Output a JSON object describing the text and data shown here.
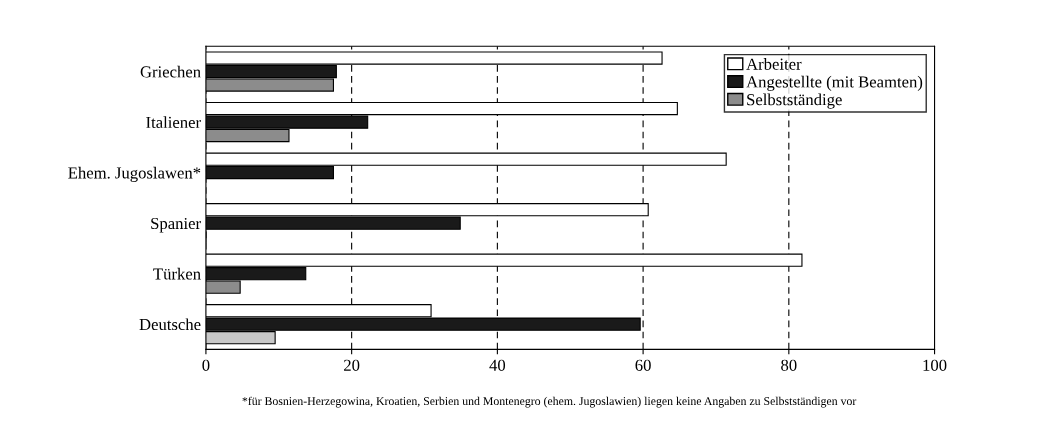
{
  "chart_data": {
    "type": "bar",
    "orientation": "horizontal",
    "categories": [
      "Griechen",
      "Italiener",
      "Ehem. Jugoslawen*",
      "Spanier",
      "Türken",
      "Deutsche"
    ],
    "series": [
      {
        "name": "Arbeiter",
        "color": "#ffffff",
        "values": [
          62.6,
          64.7,
          71.4,
          60.7,
          81.8,
          30.9
        ]
      },
      {
        "name": "Angestellte (mit Beamten)",
        "color": "#1a1a1a",
        "values": [
          17.9,
          22.2,
          17.5,
          34.9,
          13.7,
          59.6
        ]
      },
      {
        "name": "Selbstständige",
        "color": "#8c8c8c",
        "colors": [
          "#8c8c8c",
          "#8c8c8c",
          "#8c8c8c",
          "#8c8c8c",
          "#8c8c8c",
          "#c8c8c8"
        ],
        "values": [
          17.5,
          11.4,
          null,
          0,
          4.7,
          9.5
        ]
      }
    ],
    "xlim": [
      0,
      100
    ],
    "xticks": [
      0,
      20,
      40,
      60,
      80,
      100
    ],
    "grid": "x",
    "line_style": "dashed",
    "legend": "top right",
    "annotations": [
      "*für Bosnien-Herzegowina, Kroatien, Serbien und Montenegro (ehem. Jugoslawien) liegen keine Angaben zu Selbstständigen vor"
    ]
  }
}
